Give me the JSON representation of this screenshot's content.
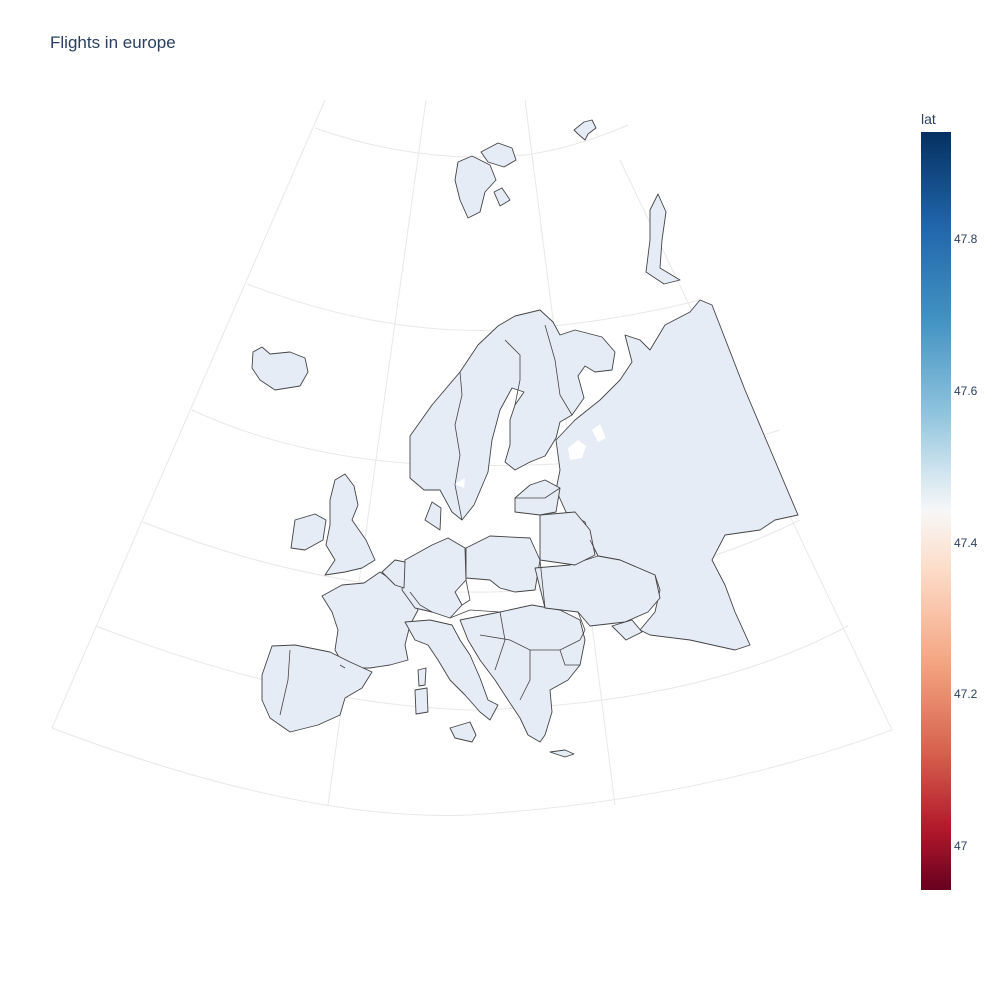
{
  "figure": {
    "title": "Flights in europe",
    "land_color": "#e5ecf6",
    "border_color": "#444444",
    "grid_color": "#e8e8e8",
    "text_color": "#2a3f5f"
  },
  "colorbar": {
    "title": "lat",
    "colorscale": "RdBu",
    "range": [
      46.95,
      47.95
    ],
    "ticks": [
      "47",
      "47.2",
      "47.4",
      "47.6",
      "47.8"
    ],
    "colors": [
      "#67001f",
      "#b2182b",
      "#d6604d",
      "#f4a582",
      "#fddbc7",
      "#f7f7f7",
      "#d1e5f0",
      "#92c5de",
      "#4393c3",
      "#2166ac",
      "#053061"
    ]
  }
}
